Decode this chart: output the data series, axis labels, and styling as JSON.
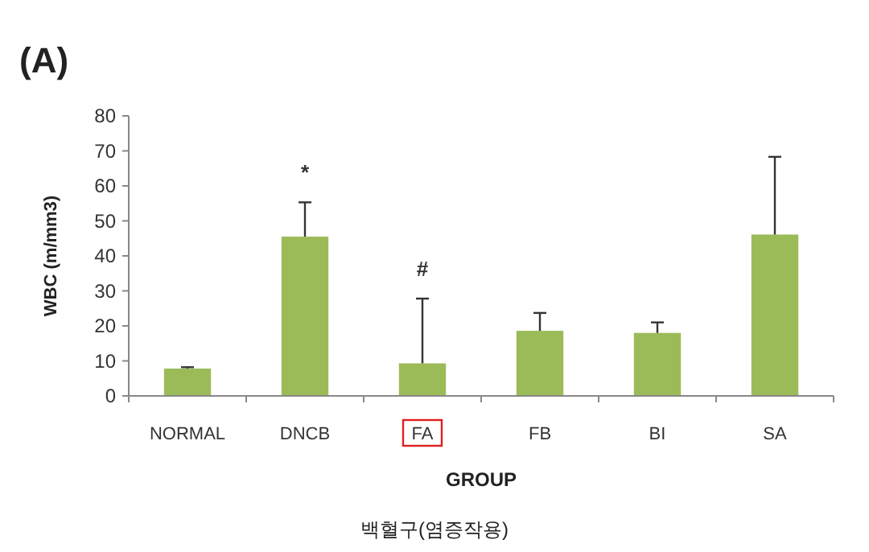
{
  "chart_data": {
    "type": "bar",
    "title": "(A)",
    "xlabel": "GROUP",
    "ylabel": "WBC (m/mm3)",
    "categories": [
      "NORMAL",
      "DNCB",
      "FA",
      "FB",
      "BI",
      "SA"
    ],
    "values": [
      7.8,
      45.5,
      9.3,
      18.6,
      18.0,
      46.1
    ],
    "errors": [
      [
        7.8,
        8.2
      ],
      [
        45.5,
        55.3
      ],
      [
        9.3,
        27.8
      ],
      [
        18.6,
        23.7
      ],
      [
        18.0,
        21.0
      ],
      [
        46.1,
        68.3
      ]
    ],
    "color": "#9bbb59",
    "ylim": [
      0,
      80
    ],
    "yticks": [
      0,
      10,
      20,
      30,
      40,
      50,
      60,
      70,
      80
    ],
    "grid": false,
    "annotations": [
      {
        "text": "*",
        "x": "DNCB",
        "y": 55.3
      },
      {
        "text": "#",
        "x": "FA",
        "y": 27.8
      },
      "백혈구(염증작용)"
    ]
  }
}
